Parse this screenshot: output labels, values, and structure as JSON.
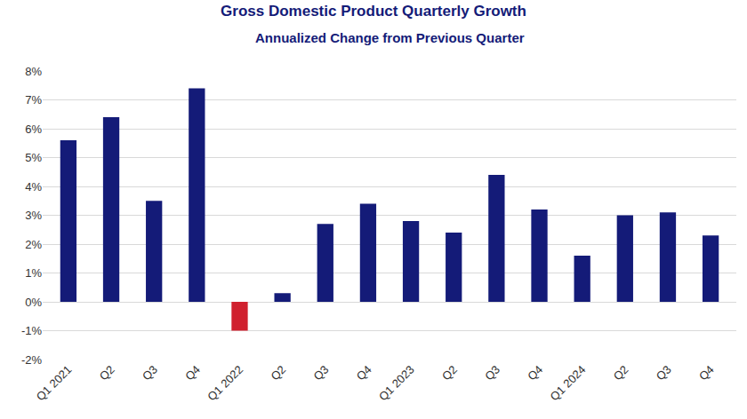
{
  "chart_data": {
    "type": "bar",
    "title": "Gross Domestic Product Quarterly Growth",
    "subtitle": "Annualized Change from Previous Quarter",
    "categories": [
      "Q1 2021",
      "Q2",
      "Q3",
      "Q4",
      "Q1 2022",
      "Q2",
      "Q3",
      "Q4",
      "Q1 2023",
      "Q2",
      "Q3",
      "Q4",
      "Q1 2024",
      "Q2",
      "Q3",
      "Q4"
    ],
    "values": [
      5.6,
      6.4,
      3.5,
      7.4,
      -1.0,
      0.3,
      2.7,
      3.4,
      2.8,
      2.4,
      4.4,
      3.2,
      1.6,
      3.0,
      3.1,
      2.3
    ],
    "colors": [
      "#141b78",
      "#141b78",
      "#141b78",
      "#141b78",
      "#d0202e",
      "#141b78",
      "#141b78",
      "#141b78",
      "#141b78",
      "#141b78",
      "#141b78",
      "#141b78",
      "#141b78",
      "#141b78",
      "#141b78",
      "#141b78"
    ],
    "ylim": [
      -2,
      8
    ],
    "yticks": [
      {
        "value": -2,
        "label": "-2%"
      },
      {
        "value": -1,
        "label": "-1%"
      },
      {
        "value": 0,
        "label": "0%"
      },
      {
        "value": 1,
        "label": "1%"
      },
      {
        "value": 2,
        "label": "2%"
      },
      {
        "value": 3,
        "label": "3%"
      },
      {
        "value": 4,
        "label": "4%"
      },
      {
        "value": 5,
        "label": "5%"
      },
      {
        "value": 6,
        "label": "6%"
      },
      {
        "value": 7,
        "label": "7%"
      },
      {
        "value": 8,
        "label": "8%"
      }
    ],
    "grid": true
  }
}
